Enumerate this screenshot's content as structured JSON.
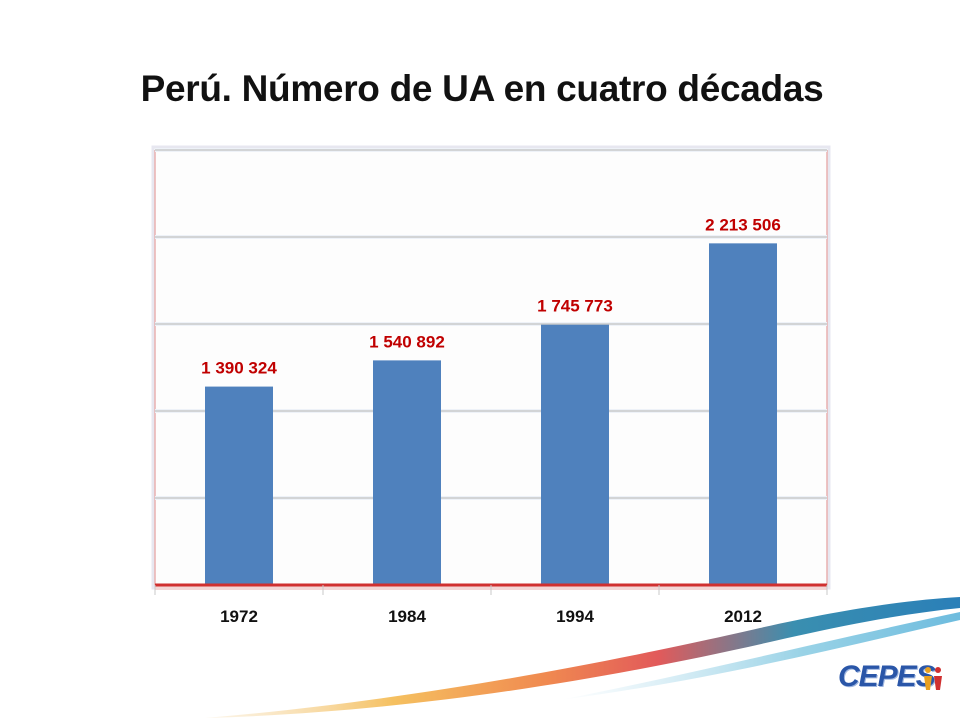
{
  "slide": {
    "logo_text": "CEPES"
  },
  "colors": {
    "bar": "#4f81bd",
    "value_label": "#c00000",
    "axis_baseline": "#d03030",
    "gridline": "#b5b5b5"
  },
  "chart_data": {
    "type": "bar",
    "title": "Perú. Número de UA en cuatro décadas",
    "xlabel": "",
    "ylabel": "",
    "categories": [
      "1972",
      "1984",
      "1994",
      "2012"
    ],
    "values": [
      1390324,
      1540892,
      1745773,
      2213506
    ],
    "value_labels": [
      "1 390 324",
      "1 540 892",
      "1 745 773",
      "2 213 506"
    ],
    "ylim": [
      250000,
      2750000
    ],
    "gridlines": true,
    "legend": "none"
  }
}
